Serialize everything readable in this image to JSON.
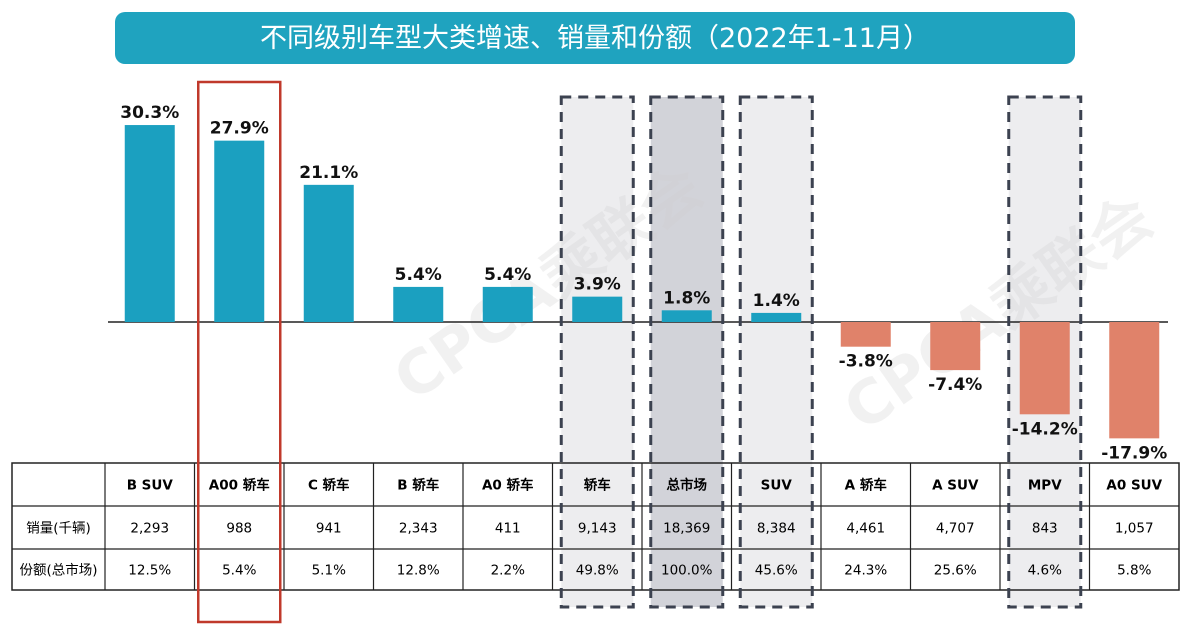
{
  "header": {
    "title": "不同级别车型大类增速、销量和份额（2022年1-11月）"
  },
  "watermark": "CPCA乘联会",
  "colors": {
    "title_bg": "#1fa3bf",
    "positive": "#1ba0c0",
    "negative": "#e0826a",
    "highlight_border": "#c0392b",
    "dashed_border": "#3c4250",
    "dashed_fill": "#ededef",
    "dashed_fill_dark": "#d2d3d9"
  },
  "chart_data": {
    "type": "bar",
    "title": "不同级别车型大类增速、销量和份额（2022年1-11月）",
    "categories": [
      "B SUV",
      "A00 轿车",
      "C 轿车",
      "B 轿车",
      "A0 轿车",
      "轿车",
      "总市场",
      "SUV",
      "A 轿车",
      "A SUV",
      "MPV",
      "A0 SUV"
    ],
    "series": [
      {
        "values": [
          30.3,
          27.9,
          21.1,
          5.4,
          5.4,
          3.9,
          1.8,
          1.4,
          -3.8,
          -7.4,
          -14.2,
          -17.9
        ]
      }
    ],
    "value_labels": [
      "30.3%",
      "27.9%",
      "21.1%",
      "5.4%",
      "5.4%",
      "3.9%",
      "1.8%",
      "1.4%",
      "-3.8%",
      "-7.4%",
      "-14.2%",
      "-17.9%"
    ],
    "ylim": [
      -20,
      32
    ],
    "grid": false,
    "highlight_solid": [
      "A00 轿车"
    ],
    "highlight_dashed": [
      "轿车",
      "总市场",
      "SUV",
      "MPV"
    ],
    "table": {
      "rows": [
        {
          "label": "销量(千辆)",
          "values": [
            "2,293",
            "988",
            "941",
            "2,343",
            "411",
            "9,143",
            "18,369",
            "8,384",
            "4,461",
            "4,707",
            "843",
            "1,057"
          ]
        },
        {
          "label": "份额(总市场)",
          "values": [
            "12.5%",
            "5.4%",
            "5.1%",
            "12.8%",
            "2.2%",
            "49.8%",
            "100.0%",
            "45.6%",
            "24.3%",
            "25.6%",
            "4.6%",
            "5.8%"
          ]
        }
      ]
    }
  }
}
